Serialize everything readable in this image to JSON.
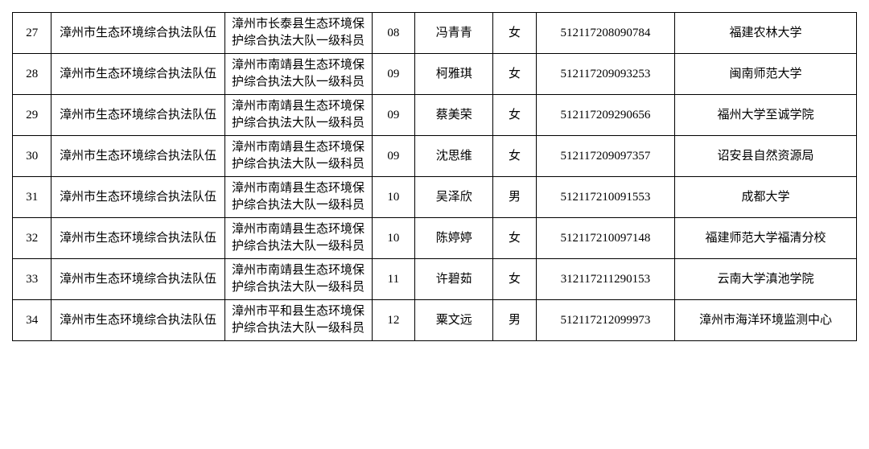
{
  "table": {
    "columns": [
      "idx",
      "unit",
      "pos",
      "code",
      "name",
      "gender",
      "num",
      "school"
    ],
    "rows": [
      {
        "idx": "27",
        "unit": "漳州市生态环境综合执法队伍",
        "pos": "漳州市长泰县生态环境保护综合执法大队一级科员",
        "code": "08",
        "name": "冯青青",
        "gender": "女",
        "num": "512117208090784",
        "school": "福建农林大学"
      },
      {
        "idx": "28",
        "unit": "漳州市生态环境综合执法队伍",
        "pos": "漳州市南靖县生态环境保护综合执法大队一级科员",
        "code": "09",
        "name": "柯雅琪",
        "gender": "女",
        "num": "512117209093253",
        "school": "闽南师范大学"
      },
      {
        "idx": "29",
        "unit": "漳州市生态环境综合执法队伍",
        "pos": "漳州市南靖县生态环境保护综合执法大队一级科员",
        "code": "09",
        "name": "蔡美荣",
        "gender": "女",
        "num": "512117209290656",
        "school": "福州大学至诚学院"
      },
      {
        "idx": "30",
        "unit": "漳州市生态环境综合执法队伍",
        "pos": "漳州市南靖县生态环境保护综合执法大队一级科员",
        "code": "09",
        "name": "沈思维",
        "gender": "女",
        "num": "512117209097357",
        "school": "诏安县自然资源局"
      },
      {
        "idx": "31",
        "unit": "漳州市生态环境综合执法队伍",
        "pos": "漳州市南靖县生态环境保护综合执法大队一级科员",
        "code": "10",
        "name": "吴泽欣",
        "gender": "男",
        "num": "512117210091553",
        "school": "成都大学"
      },
      {
        "idx": "32",
        "unit": "漳州市生态环境综合执法队伍",
        "pos": "漳州市南靖县生态环境保护综合执法大队一级科员",
        "code": "10",
        "name": "陈婷婷",
        "gender": "女",
        "num": "512117210097148",
        "school": "福建师范大学福清分校"
      },
      {
        "idx": "33",
        "unit": "漳州市生态环境综合执法队伍",
        "pos": "漳州市南靖县生态环境保护综合执法大队一级科员",
        "code": "11",
        "name": "许碧茹",
        "gender": "女",
        "num": "312117211290153",
        "school": "云南大学滇池学院"
      },
      {
        "idx": "34",
        "unit": "漳州市生态环境综合执法队伍",
        "pos": "漳州市平和县生态环境保护综合执法大队一级科员",
        "code": "12",
        "name": "粟文远",
        "gender": "男",
        "num": "512117212099973",
        "school": "漳州市海洋环境监测中心"
      }
    ]
  }
}
